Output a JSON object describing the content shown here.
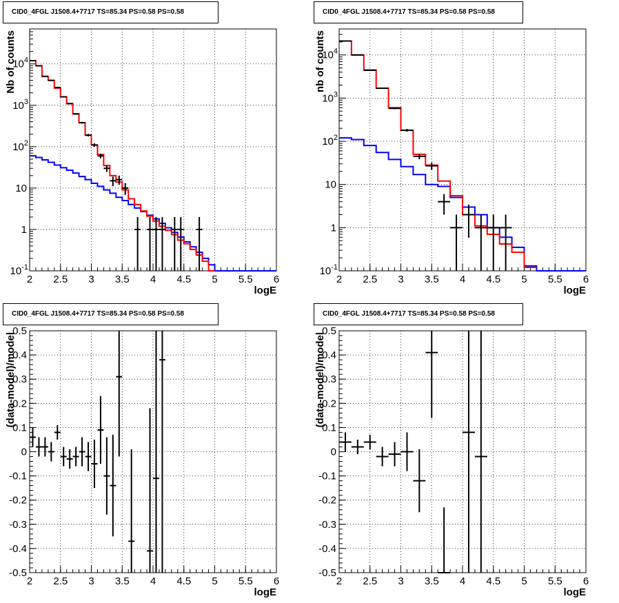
{
  "chart_data": [
    {
      "type": "line",
      "title": "CID0_4FGL J1508.4+7717 TS=85.34 PS=0.58 PS=0.58",
      "xlabel": "logE",
      "ylabel": "Nb of counts",
      "xlim": [
        2,
        6
      ],
      "ylim": [
        0.1,
        70000
      ],
      "yscale": "log",
      "grid": true,
      "x_ticks": [
        "2",
        "2.5",
        "3",
        "3.5",
        "4",
        "4.5",
        "5",
        "5.5",
        "6"
      ],
      "y_ticks": [
        {
          "value": 0.1,
          "label": "10",
          "sup": "-1"
        },
        {
          "value": 1,
          "label": "1",
          "sup": ""
        },
        {
          "value": 10,
          "label": "10",
          "sup": ""
        },
        {
          "value": 100,
          "label": "10",
          "sup": "2"
        },
        {
          "value": 1000,
          "label": "10",
          "sup": "3"
        },
        {
          "value": 10000,
          "label": "10",
          "sup": "4"
        }
      ],
      "bin_width": 0.1,
      "series": [
        {
          "color": "#0000ff",
          "kind": "hist",
          "x": [
            2.0,
            2.1,
            2.2,
            2.3,
            2.4,
            2.5,
            2.6,
            2.7,
            2.8,
            2.9,
            3.0,
            3.1,
            3.2,
            3.3,
            3.4,
            3.5,
            3.6,
            3.7,
            3.8,
            3.9,
            4.0,
            4.1,
            4.2,
            4.3,
            4.4,
            4.5,
            4.6,
            4.7,
            4.8,
            4.9,
            5.0,
            5.1,
            5.2,
            5.3,
            5.4,
            5.5,
            5.6,
            5.7,
            5.8,
            5.9
          ],
          "values": [
            60,
            55,
            48,
            42,
            36,
            31,
            27,
            23,
            19,
            16,
            13,
            11,
            9,
            7.5,
            6,
            5,
            4,
            3.3,
            2.7,
            2.2,
            1.8,
            1.4,
            1.1,
            0.85,
            0.65,
            0.5,
            0.38,
            0.28,
            0.2,
            0.14,
            0.1,
            0.1,
            0.1,
            0.1,
            0.1,
            0.1,
            0.1,
            0.1,
            0.1,
            0.1
          ]
        },
        {
          "color": "#ff0000",
          "kind": "hist",
          "x": [
            2.0,
            2.1,
            2.2,
            2.3,
            2.4,
            2.5,
            2.6,
            2.7,
            2.8,
            2.9,
            3.0,
            3.1,
            3.2,
            3.3,
            3.4,
            3.5,
            3.6,
            3.7,
            3.8,
            3.9,
            4.0,
            4.1,
            4.2,
            4.3,
            4.4,
            4.5,
            4.6,
            4.7,
            4.8,
            4.9
          ],
          "values": [
            12000,
            9000,
            5000,
            4000,
            2600,
            1600,
            1100,
            620,
            380,
            190,
            110,
            65,
            35,
            20,
            14,
            9,
            5.5,
            4,
            2.8,
            2.1,
            1.6,
            1.2,
            0.95,
            0.75,
            0.55,
            0.45,
            0.33,
            0.24,
            0.17,
            0.1
          ]
        },
        {
          "color": "#000000",
          "kind": "points",
          "x": [
            2.05,
            2.15,
            2.25,
            2.35,
            2.45,
            2.55,
            2.65,
            2.75,
            2.85,
            2.95,
            3.05,
            3.15,
            3.25,
            3.35,
            3.45,
            3.55,
            3.75,
            3.95,
            4.05,
            4.15,
            4.35,
            4.45,
            4.75
          ],
          "values": [
            12000,
            9000,
            5000,
            4000,
            2700,
            1600,
            1100,
            620,
            380,
            190,
            110,
            60,
            30,
            15,
            16,
            10,
            1,
            1,
            1,
            1,
            1,
            1,
            1
          ]
        }
      ]
    },
    {
      "type": "line",
      "title": "CID0_4FGL J1508.4+7717 TS=85.34 PS=0.58 PS=0.58",
      "xlabel": "logE",
      "ylabel": "nb of counts",
      "xlim": [
        2,
        6
      ],
      "ylim": [
        0.1,
        40000
      ],
      "yscale": "log",
      "grid": true,
      "x_ticks": [
        "2",
        "2.5",
        "3",
        "3.5",
        "4",
        "4.5",
        "5",
        "5.5",
        "6"
      ],
      "y_ticks": [
        {
          "value": 0.1,
          "label": "10",
          "sup": "-1"
        },
        {
          "value": 1,
          "label": "1",
          "sup": ""
        },
        {
          "value": 10,
          "label": "10",
          "sup": ""
        },
        {
          "value": 100,
          "label": "10",
          "sup": "2"
        },
        {
          "value": 1000,
          "label": "10",
          "sup": "3"
        },
        {
          "value": 10000,
          "label": "10",
          "sup": "4"
        }
      ],
      "bin_width": 0.2,
      "series": [
        {
          "color": "#0000ff",
          "kind": "hist",
          "x": [
            2.0,
            2.2,
            2.4,
            2.6,
            2.8,
            3.0,
            3.2,
            3.4,
            3.6,
            3.8,
            4.0,
            4.2,
            4.4,
            4.6,
            4.8,
            5.0,
            5.2,
            5.4,
            5.6,
            5.8
          ],
          "values": [
            120,
            110,
            80,
            55,
            38,
            26,
            17,
            10,
            9,
            5,
            3,
            2,
            1,
            0.6,
            0.35,
            0.13,
            0.1,
            0.1,
            0.1,
            0.1
          ]
        },
        {
          "color": "#ff0000",
          "kind": "hist",
          "x": [
            2.0,
            2.2,
            2.4,
            2.6,
            2.8,
            3.0,
            3.2,
            3.4,
            3.6,
            3.8,
            4.0,
            4.2,
            4.4,
            4.6,
            4.8,
            5.0
          ],
          "values": [
            21000,
            10000,
            4500,
            1700,
            600,
            180,
            50,
            28,
            12,
            5.5,
            2,
            1.1,
            0.7,
            0.42,
            0.27,
            0.12
          ]
        },
        {
          "color": "#000000",
          "kind": "points",
          "x": [
            2.1,
            2.3,
            2.5,
            2.7,
            2.9,
            3.1,
            3.3,
            3.5,
            3.7,
            3.9,
            4.1,
            4.3,
            4.5,
            4.7
          ],
          "values": [
            21000,
            10000,
            4400,
            1700,
            580,
            180,
            45,
            27,
            4,
            1,
            2,
            1,
            1,
            1
          ]
        }
      ]
    },
    {
      "type": "scatter",
      "title": "CID0_4FGL J1508.4+7717 TS=85.34 PS=0.58 PS=0.58",
      "xlabel": "logE",
      "ylabel": "(data-model)/model",
      "xlim": [
        2,
        6
      ],
      "ylim": [
        -0.5,
        0.5
      ],
      "grid": true,
      "x_ticks": [
        "2",
        "2.5",
        "3",
        "3.5",
        "4",
        "4.5",
        "5",
        "5.5",
        "6"
      ],
      "y_ticks": [
        "-0.5",
        "-0.4",
        "-0.3",
        "-0.2",
        "-0.1",
        "0",
        "0.1",
        "0.2",
        "0.3",
        "0.4",
        "0.5"
      ],
      "half_bin": 0.05,
      "points": {
        "x": [
          2.05,
          2.15,
          2.25,
          2.35,
          2.45,
          2.55,
          2.65,
          2.75,
          2.85,
          2.95,
          3.05,
          3.15,
          3.25,
          3.35,
          3.45,
          3.65,
          3.95,
          4.05,
          4.15
        ],
        "y": [
          0.06,
          0.02,
          0.02,
          0.0,
          0.08,
          -0.02,
          -0.03,
          -0.02,
          0.0,
          -0.02,
          -0.05,
          0.09,
          -0.1,
          -0.14,
          0.31,
          -0.37,
          -0.41,
          -0.11,
          0.38
        ],
        "err": [
          0.04,
          0.04,
          0.04,
          0.04,
          0.03,
          0.04,
          0.04,
          0.04,
          0.06,
          0.06,
          0.1,
          0.14,
          0.16,
          0.21,
          0.33,
          0.38,
          0.59,
          0.85,
          0.95
        ]
      }
    },
    {
      "type": "scatter",
      "title": "CID0_4FGL J1508.4+7717 TS=85.34 PS=0.58 PS=0.58",
      "xlabel": "logE",
      "ylabel": "(data-model)/model",
      "xlim": [
        2,
        6
      ],
      "ylim": [
        -0.5,
        0.5
      ],
      "grid": true,
      "x_ticks": [
        "2",
        "2.5",
        "3",
        "3.5",
        "4",
        "4.5",
        "5",
        "5.5",
        "6"
      ],
      "y_ticks": [
        "-0.5",
        "-0.4",
        "-0.3",
        "-0.2",
        "-0.1",
        "0",
        "0.1",
        "0.2",
        "0.3",
        "0.4",
        "0.5"
      ],
      "half_bin": 0.1,
      "points": {
        "x": [
          2.1,
          2.3,
          2.5,
          2.7,
          2.9,
          3.1,
          3.3,
          3.5,
          3.7,
          4.1,
          4.3
        ],
        "y": [
          0.04,
          0.02,
          0.04,
          -0.02,
          -0.01,
          0.0,
          -0.12,
          0.41,
          -0.5,
          0.08,
          -0.02
        ],
        "err": [
          0.04,
          0.03,
          0.03,
          0.04,
          0.05,
          0.08,
          0.13,
          0.27,
          0.27,
          0.95,
          0.95
        ]
      }
    }
  ]
}
